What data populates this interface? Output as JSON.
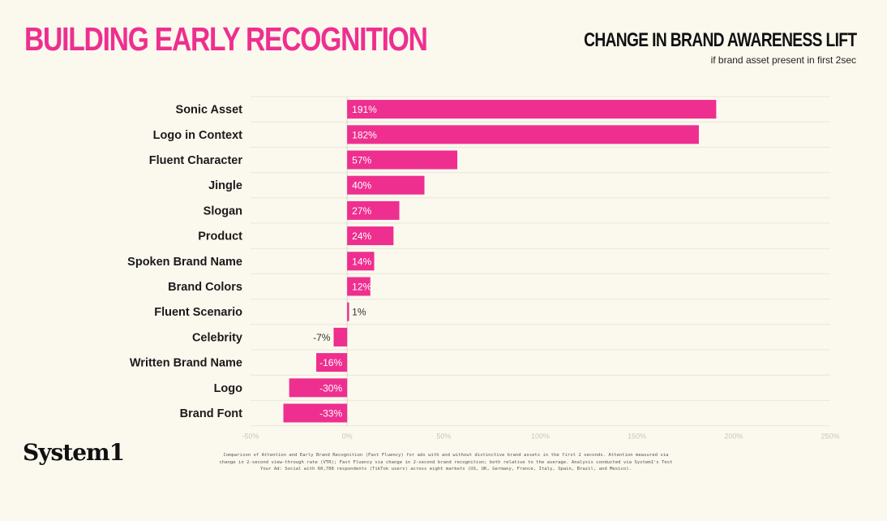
{
  "header": {
    "title": "BUILDING EARLY RECOGNITION"
  },
  "chart_data": {
    "type": "bar",
    "orientation": "horizontal",
    "title": "CHANGE IN BRAND AWARENESS LIFT",
    "subtitle": "if brand asset present in first 2sec",
    "categories": [
      "Sonic Asset",
      "Logo in Context",
      "Fluent Character",
      "Jingle",
      "Slogan",
      "Product",
      "Spoken Brand Name",
      "Brand Colors",
      "Fluent Scenario",
      "Celebrity",
      "Written Brand Name",
      "Logo",
      "Brand Font"
    ],
    "values": [
      191,
      182,
      57,
      40,
      27,
      24,
      14,
      12,
      1,
      -7,
      -16,
      -30,
      -33
    ],
    "data_labels": [
      "191%",
      "182%",
      "57%",
      "40%",
      "27%",
      "24%",
      "14%",
      "12%",
      "1%",
      "-7%",
      "-16%",
      "-30%",
      "-33%"
    ],
    "xlim": [
      -50,
      250
    ],
    "x_ticks": [
      -50,
      0,
      50,
      100,
      150,
      200,
      250
    ],
    "x_tick_labels": [
      "-50%",
      "0%",
      "50%",
      "100%",
      "150%",
      "200%",
      "250%"
    ],
    "grid": true,
    "bar_color": "#ee2f8f"
  },
  "footer": {
    "logo": "System1",
    "footnote": "Comparison of Attention and Early Brand Recognition (Fast Fluency) for ads with and without distinctive brand assets in the first 2 seconds. Attention measured via change in 2-second view-through rate (VTR); Fast Fluency via change in 2-second brand recognition; both relative to the average. Analysis conducted via System1's Test Your Ad: Social with 60,788 respondents (TikTok users) across eight markets (US, UK, Germany, France, Italy, Spain, Brazil, and Mexico)."
  }
}
